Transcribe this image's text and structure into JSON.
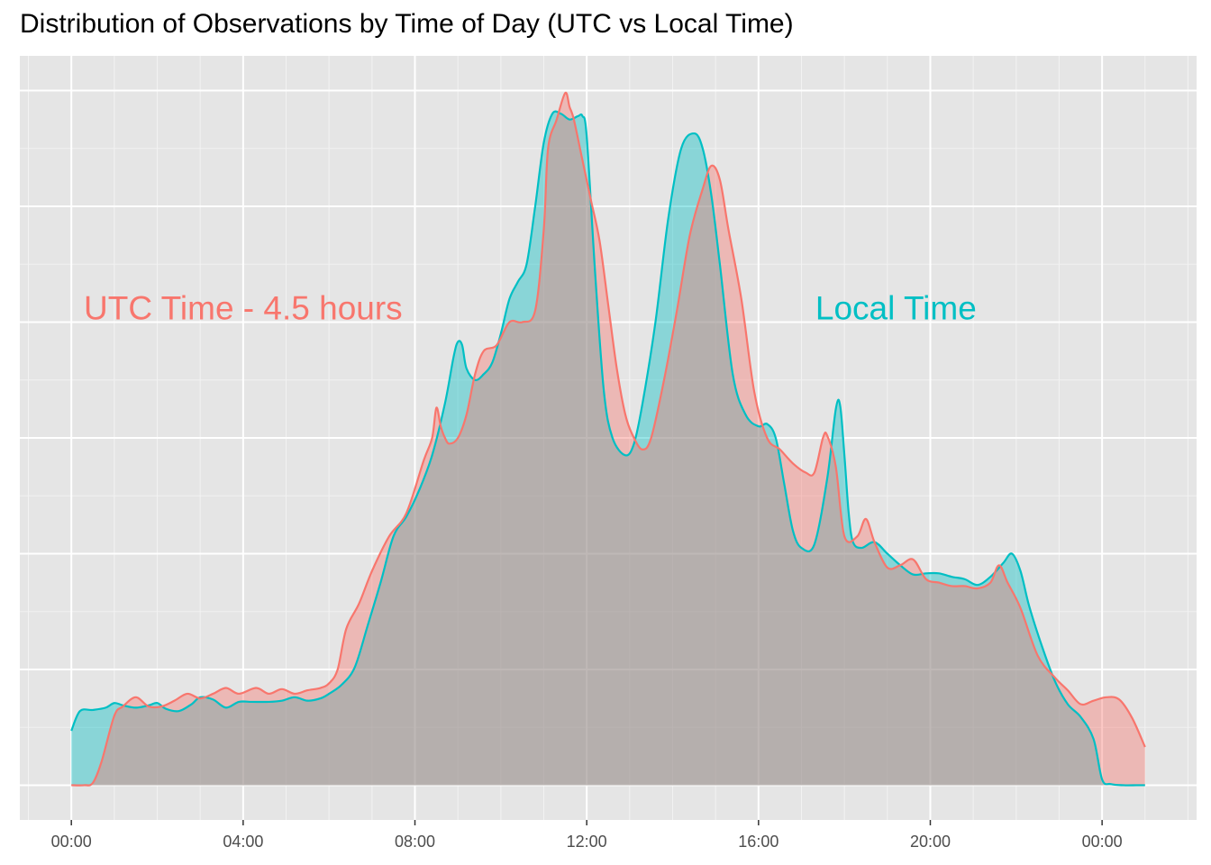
{
  "title": "Distribution of Observations by Time of Day (UTC vs Local Time)",
  "chart_data": {
    "type": "area",
    "title": "Distribution of Observations by Time of Day (UTC vs Local Time)",
    "xlabel": "",
    "ylabel": "",
    "x_unit": "hour of day",
    "xlim": [
      -1.2,
      26.2
    ],
    "ylim": [
      -0.03,
      0.63
    ],
    "x_ticks": [
      0,
      4,
      8,
      12,
      16,
      20,
      24
    ],
    "x_tick_labels": [
      "00:00",
      "04:00",
      "08:00",
      "12:00",
      "16:00",
      "20:00",
      "00:00"
    ],
    "y_tick_labels_shown": false,
    "y_gridlines": [
      0,
      0.1,
      0.2,
      0.3,
      0.4,
      0.5,
      0.6
    ],
    "grid": true,
    "background": "#e5e5e5",
    "legend": "none",
    "annotations": [
      {
        "text": "UTC Time - 4.5 hours",
        "x": 4,
        "y": 0.41,
        "color": "#f8766d",
        "series": "utc"
      },
      {
        "text": "Local Time",
        "x": 19.2,
        "y": 0.41,
        "color": "#00bfc4",
        "series": "local"
      }
    ],
    "series": [
      {
        "key": "local",
        "color": "#00bfc4",
        "x": [
          0,
          0.2,
          0.5,
          0.8,
          1.0,
          1.2,
          1.5,
          1.8,
          2.0,
          2.2,
          2.5,
          2.8,
          3.0,
          3.3,
          3.6,
          3.9,
          4.2,
          4.6,
          4.9,
          5.2,
          5.5,
          5.8,
          6.0,
          6.3,
          6.6,
          6.9,
          7.2,
          7.5,
          7.8,
          8.1,
          8.4,
          8.7,
          8.9,
          9.0,
          9.1,
          9.2,
          9.4,
          9.6,
          9.8,
          10.0,
          10.2,
          10.4,
          10.6,
          10.8,
          11.0,
          11.2,
          11.4,
          11.6,
          11.8,
          11.9,
          12.0,
          12.2,
          12.4,
          12.6,
          12.9,
          13.1,
          13.3,
          13.6,
          13.9,
          14.2,
          14.5,
          14.7,
          14.9,
          15.1,
          15.4,
          15.7,
          16.0,
          16.2,
          16.4,
          16.6,
          16.8,
          17.0,
          17.3,
          17.6,
          17.8,
          17.9,
          18.0,
          18.1,
          18.2,
          18.4,
          18.7,
          19.0,
          19.3,
          19.6,
          19.9,
          20.2,
          20.5,
          20.8,
          21.1,
          21.4,
          21.7,
          21.9,
          22.1,
          22.3,
          22.6,
          22.9,
          23.2,
          23.5,
          23.8,
          24.0,
          24.2,
          24.5,
          24.8,
          25.0
        ],
        "values": [
          0.047,
          0.064,
          0.065,
          0.067,
          0.071,
          0.069,
          0.067,
          0.069,
          0.071,
          0.066,
          0.064,
          0.07,
          0.076,
          0.074,
          0.067,
          0.072,
          0.072,
          0.072,
          0.073,
          0.076,
          0.073,
          0.075,
          0.079,
          0.087,
          0.102,
          0.138,
          0.175,
          0.215,
          0.232,
          0.255,
          0.285,
          0.33,
          0.37,
          0.383,
          0.38,
          0.36,
          0.35,
          0.355,
          0.365,
          0.39,
          0.42,
          0.435,
          0.45,
          0.5,
          0.555,
          0.58,
          0.58,
          0.575,
          0.578,
          0.578,
          0.56,
          0.44,
          0.34,
          0.3,
          0.285,
          0.295,
          0.33,
          0.4,
          0.49,
          0.55,
          0.563,
          0.55,
          0.51,
          0.45,
          0.355,
          0.32,
          0.31,
          0.312,
          0.3,
          0.26,
          0.22,
          0.205,
          0.208,
          0.265,
          0.325,
          0.328,
          0.285,
          0.235,
          0.21,
          0.205,
          0.21,
          0.2,
          0.19,
          0.182,
          0.183,
          0.183,
          0.18,
          0.178,
          0.173,
          0.18,
          0.192,
          0.2,
          0.185,
          0.155,
          0.12,
          0.09,
          0.07,
          0.059,
          0.04,
          0.005,
          0.001,
          0.0,
          0.0,
          0.0
        ]
      },
      {
        "key": "utc",
        "color": "#f8766d",
        "x": [
          0,
          0.3,
          0.5,
          0.7,
          1.0,
          1.2,
          1.5,
          1.8,
          2.1,
          2.4,
          2.7,
          3.0,
          3.3,
          3.6,
          3.9,
          4.3,
          4.6,
          4.9,
          5.2,
          5.5,
          5.8,
          6.0,
          6.2,
          6.4,
          6.7,
          7.0,
          7.4,
          7.8,
          8.2,
          8.4,
          8.5,
          8.6,
          8.7,
          8.8,
          9.0,
          9.2,
          9.4,
          9.6,
          9.9,
          10.2,
          10.5,
          10.8,
          11.0,
          11.1,
          11.3,
          11.5,
          11.6,
          11.7,
          11.9,
          12.1,
          12.3,
          12.5,
          12.7,
          12.9,
          13.1,
          13.3,
          13.5,
          13.8,
          14.1,
          14.4,
          14.7,
          14.9,
          15.1,
          15.3,
          15.6,
          15.9,
          16.2,
          16.5,
          16.8,
          17.1,
          17.3,
          17.5,
          17.6,
          17.8,
          18.0,
          18.3,
          18.5,
          18.7,
          19.0,
          19.3,
          19.6,
          19.9,
          20.2,
          20.5,
          20.8,
          21.1,
          21.4,
          21.6,
          21.8,
          22.1,
          22.5,
          22.9,
          23.2,
          23.5,
          23.8,
          24.1,
          24.4,
          24.7,
          25.0
        ],
        "values": [
          0.0,
          0.0,
          0.002,
          0.02,
          0.06,
          0.068,
          0.076,
          0.068,
          0.068,
          0.073,
          0.079,
          0.075,
          0.079,
          0.084,
          0.079,
          0.084,
          0.079,
          0.083,
          0.079,
          0.082,
          0.084,
          0.088,
          0.1,
          0.135,
          0.157,
          0.185,
          0.215,
          0.235,
          0.28,
          0.3,
          0.326,
          0.31,
          0.3,
          0.295,
          0.3,
          0.32,
          0.355,
          0.375,
          0.38,
          0.4,
          0.4,
          0.41,
          0.48,
          0.55,
          0.575,
          0.598,
          0.586,
          0.575,
          0.54,
          0.505,
          0.47,
          0.415,
          0.36,
          0.32,
          0.3,
          0.29,
          0.3,
          0.35,
          0.41,
          0.475,
          0.515,
          0.535,
          0.523,
          0.48,
          0.42,
          0.34,
          0.3,
          0.29,
          0.278,
          0.27,
          0.27,
          0.3,
          0.302,
          0.275,
          0.215,
          0.215,
          0.23,
          0.21,
          0.188,
          0.19,
          0.195,
          0.178,
          0.175,
          0.172,
          0.172,
          0.17,
          0.175,
          0.19,
          0.175,
          0.153,
          0.112,
          0.093,
          0.082,
          0.07,
          0.073,
          0.076,
          0.074,
          0.058,
          0.033
        ]
      }
    ]
  }
}
